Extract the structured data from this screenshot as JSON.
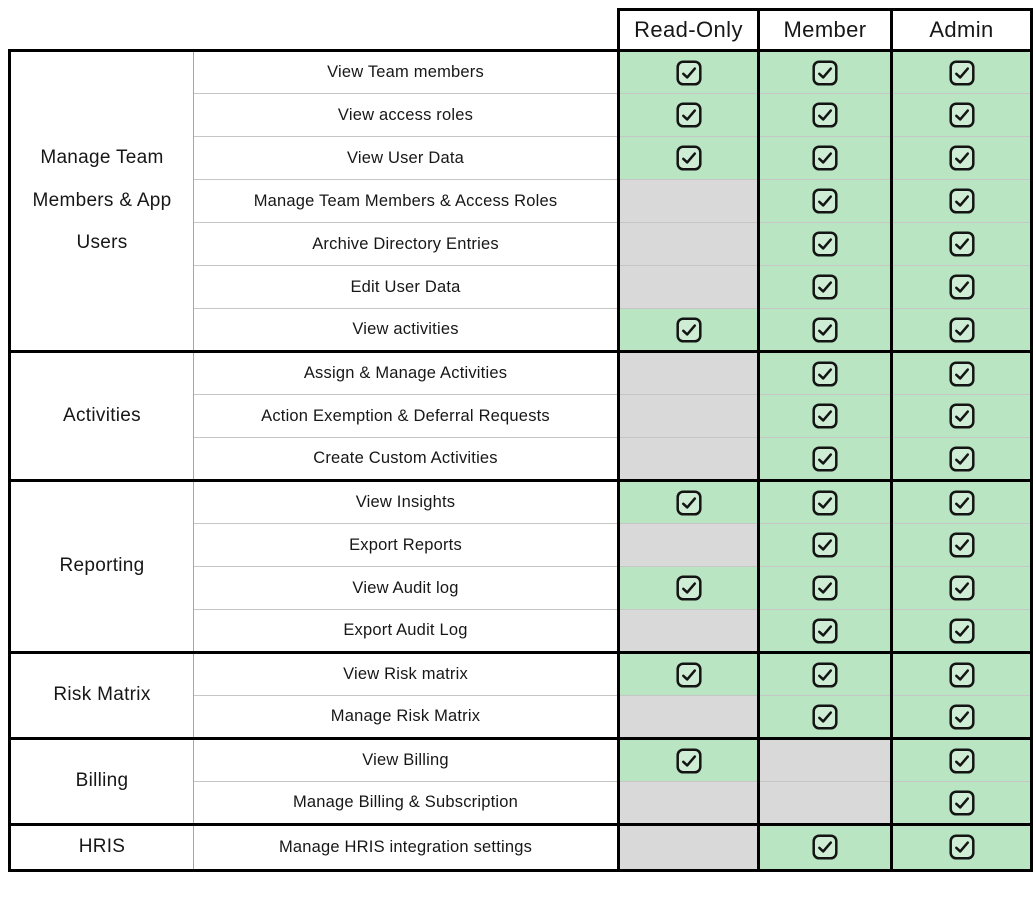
{
  "colors": {
    "granted_bg": "#b9e5c2",
    "denied_bg": "#d9d9d9",
    "border_black": "#000000",
    "row_line": "#c6c6c6",
    "text": "#171717"
  },
  "icons": {
    "granted": "checkbox-checked-icon",
    "granted_unicode": "☑"
  },
  "header": {
    "columns": [
      "Read-Only",
      "Member",
      "Admin"
    ]
  },
  "sections": [
    {
      "category": "Manage Team Members & App Users",
      "rows": [
        {
          "label": "View Team members",
          "perms": [
            true,
            true,
            true
          ]
        },
        {
          "label": "View access roles",
          "perms": [
            true,
            true,
            true
          ]
        },
        {
          "label": "View User Data",
          "perms": [
            true,
            true,
            true
          ]
        },
        {
          "label": "Manage Team Members & Access Roles",
          "perms": [
            false,
            true,
            true
          ]
        },
        {
          "label": "Archive Directory Entries",
          "perms": [
            false,
            true,
            true
          ]
        },
        {
          "label": "Edit User Data",
          "perms": [
            false,
            true,
            true
          ]
        },
        {
          "label": "View activities",
          "perms": [
            true,
            true,
            true
          ]
        }
      ]
    },
    {
      "category": "Activities",
      "rows": [
        {
          "label": "Assign & Manage Activities",
          "perms": [
            false,
            true,
            true
          ]
        },
        {
          "label": "Action Exemption & Deferral Requests",
          "perms": [
            false,
            true,
            true
          ]
        },
        {
          "label": "Create Custom Activities",
          "perms": [
            false,
            true,
            true
          ]
        }
      ]
    },
    {
      "category": "Reporting",
      "rows": [
        {
          "label": "View Insights",
          "perms": [
            true,
            true,
            true
          ]
        },
        {
          "label": "Export Reports",
          "perms": [
            false,
            true,
            true
          ]
        },
        {
          "label": "View Audit log",
          "perms": [
            true,
            true,
            true
          ]
        },
        {
          "label": "Export Audit Log",
          "perms": [
            false,
            true,
            true
          ]
        }
      ]
    },
    {
      "category": "Risk Matrix",
      "rows": [
        {
          "label": "View Risk matrix",
          "perms": [
            true,
            true,
            true
          ]
        },
        {
          "label": "Manage Risk Matrix",
          "perms": [
            false,
            true,
            true
          ]
        }
      ]
    },
    {
      "category": "Billing",
      "rows": [
        {
          "label": "View Billing",
          "perms": [
            true,
            false,
            true
          ]
        },
        {
          "label": "Manage Billing & Subscription",
          "perms": [
            false,
            false,
            true
          ]
        }
      ]
    },
    {
      "category": "HRIS",
      "rows": [
        {
          "label": "Manage HRIS integration settings",
          "perms": [
            false,
            true,
            true
          ]
        }
      ]
    }
  ]
}
